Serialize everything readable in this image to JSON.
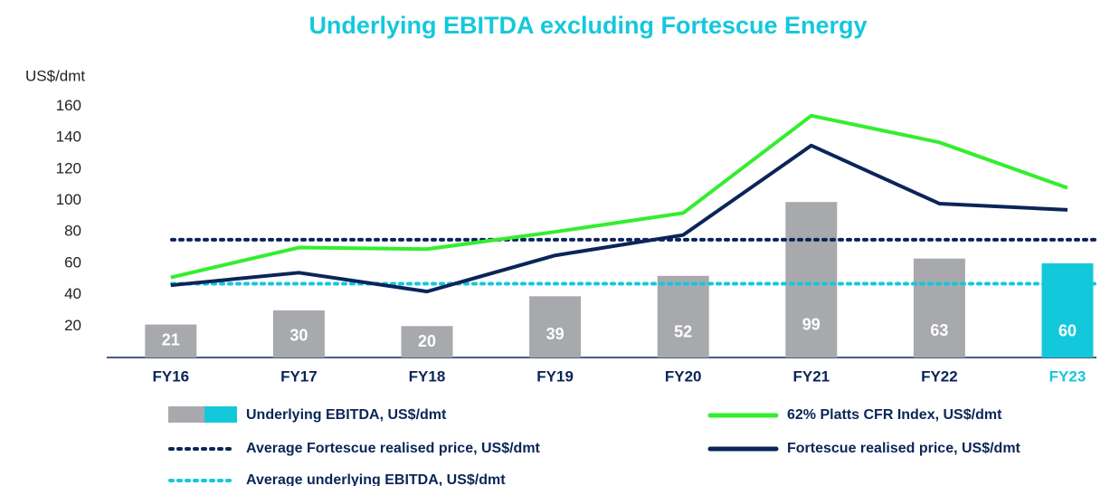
{
  "chart_data": {
    "type": "bar",
    "title": "Underlying EBITDA excluding Fortescue Energy",
    "y_axis_label": "US$/dmt",
    "categories": [
      "FY16",
      "FY17",
      "FY18",
      "FY19",
      "FY20",
      "FY21",
      "FY22",
      "FY23"
    ],
    "category_colors": [
      "#0b2559",
      "#0b2559",
      "#0b2559",
      "#0b2559",
      "#0b2559",
      "#0b2559",
      "#0b2559",
      "#14c8dc"
    ],
    "ylim": [
      0,
      160
    ],
    "yticks": [
      20,
      40,
      60,
      80,
      100,
      120,
      140,
      160
    ],
    "bars": {
      "name": "Underlying EBITDA, US$/dmt",
      "values": [
        21,
        30,
        20,
        39,
        52,
        99,
        63,
        60
      ],
      "colors": [
        "#a7a9ac",
        "#a7a9ac",
        "#a7a9ac",
        "#a7a9ac",
        "#a7a9ac",
        "#a7a9ac",
        "#a7a9ac",
        "#14c8dc"
      ]
    },
    "series": [
      {
        "name": "62% Platts CFR Index, US$/dmt",
        "color": "#33ee2e",
        "values": [
          51,
          70,
          69,
          80,
          92,
          154,
          137,
          108
        ]
      },
      {
        "name": "Fortescue realised price, US$/dmt",
        "color": "#0b2559",
        "values": [
          46,
          54,
          42,
          65,
          78,
          135,
          98,
          94
        ]
      }
    ],
    "reference_lines": [
      {
        "name": "Average Fortescue realised price, US$/dmt",
        "color": "#0b2559",
        "value": 75
      },
      {
        "name": "Average underlying EBITDA, US$/dmt",
        "color": "#14c8dc",
        "value": 47
      }
    ]
  }
}
